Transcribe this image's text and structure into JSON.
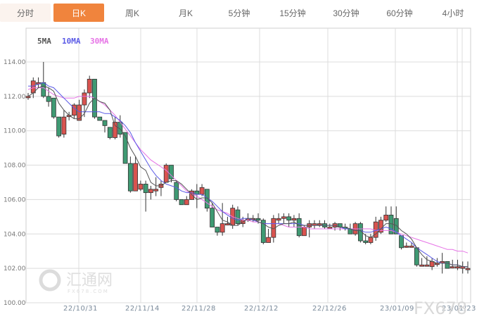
{
  "tabs": [
    {
      "label": "分时",
      "state": "first"
    },
    {
      "label": "日K",
      "state": "active"
    },
    {
      "label": "周K",
      "state": ""
    },
    {
      "label": "月K",
      "state": ""
    },
    {
      "label": "5分钟",
      "state": ""
    },
    {
      "label": "15分钟",
      "state": ""
    },
    {
      "label": "30分钟",
      "state": ""
    },
    {
      "label": "60分钟",
      "state": ""
    },
    {
      "label": "4小时",
      "state": ""
    }
  ],
  "watermark": {
    "logo_text": "汇通网",
    "logo_sub": "FX678.COM",
    "corner_text": "FX678"
  },
  "colors": {
    "up": "#d9534f",
    "down": "#3f9a73",
    "ma5": "#555555",
    "ma10": "#5a5ae6",
    "ma30": "#e673e6",
    "grid": "#dcdcdc",
    "active_tab": "#f0843d"
  },
  "chart_data": {
    "type": "candlestick",
    "title": "",
    "legend": [
      "5MA",
      "10MA",
      "30MA"
    ],
    "xlabel": "",
    "ylabel": "",
    "ylim": [
      100,
      115.6
    ],
    "yticks": [
      "114.00",
      "112.00",
      "110.00",
      "108.00",
      "106.00",
      "104.00",
      "102.00",
      "100.00"
    ],
    "xticks": [
      "22/10/31",
      "22/11/14",
      "22/11/28",
      "22/12/12",
      "22/12/26",
      "23/01/09",
      "23/01/23"
    ],
    "grid": true,
    "candles": [
      [
        112.0,
        112.0,
        112.2,
        111.8
      ],
      [
        112.2,
        112.9,
        113.1,
        111.9
      ],
      [
        112.8,
        112.8,
        113.1,
        112.5
      ],
      [
        112.8,
        112.0,
        114.0,
        111.9
      ],
      [
        112.0,
        111.7,
        112.5,
        111.4
      ],
      [
        111.9,
        110.8,
        111.9,
        110.7
      ],
      [
        110.8,
        109.7,
        110.8,
        109.6
      ],
      [
        109.8,
        110.8,
        111.2,
        109.6
      ],
      [
        110.9,
        110.9,
        111.1,
        110.6
      ],
      [
        110.9,
        111.5,
        111.6,
        110.7
      ],
      [
        110.6,
        111.5,
        111.8,
        110.6
      ],
      [
        111.5,
        112.2,
        112.4,
        110.8
      ],
      [
        112.2,
        113.0,
        113.2,
        111.9
      ],
      [
        113.0,
        110.8,
        113.0,
        110.7
      ],
      [
        110.8,
        110.6,
        110.8,
        110.6
      ],
      [
        110.6,
        110.3,
        110.6,
        109.9
      ],
      [
        110.2,
        109.6,
        110.2,
        109.5
      ],
      [
        109.6,
        110.5,
        110.8,
        109.5
      ],
      [
        110.5,
        109.8,
        110.9,
        109.6
      ],
      [
        109.9,
        108.1,
        109.9,
        108.1
      ],
      [
        108.1,
        106.5,
        108.5,
        106.4
      ],
      [
        106.5,
        108.1,
        108.5,
        106.5
      ],
      [
        106.6,
        106.9,
        107.1,
        106.5
      ],
      [
        106.9,
        106.4,
        107.1,
        105.3
      ],
      [
        106.4,
        106.6,
        106.8,
        106.0
      ],
      [
        106.5,
        106.6,
        107.3,
        106.2
      ],
      [
        106.7,
        106.9,
        107.1,
        106.2
      ],
      [
        107.0,
        108.0,
        108.1,
        107.0
      ],
      [
        108.0,
        107.2,
        108.0,
        107.0
      ],
      [
        107.0,
        106.0,
        107.1,
        105.9
      ],
      [
        106.0,
        105.7,
        106.0,
        105.7
      ],
      [
        105.7,
        106.0,
        106.2,
        105.7
      ],
      [
        106.0,
        106.5,
        106.6,
        106.0
      ],
      [
        106.5,
        106.3,
        106.9,
        105.5
      ],
      [
        106.3,
        106.7,
        106.9,
        106.2
      ],
      [
        106.6,
        105.5,
        106.6,
        105.3
      ],
      [
        105.5,
        104.4,
        105.8,
        104.4
      ],
      [
        104.4,
        104.1,
        104.4,
        103.9
      ],
      [
        104.1,
        104.6,
        105.8,
        103.9
      ],
      [
        104.6,
        104.6,
        105.0,
        104.5
      ],
      [
        104.5,
        105.5,
        105.7,
        104.3
      ],
      [
        105.4,
        104.6,
        105.6,
        104.5
      ],
      [
        104.6,
        104.8,
        105.0,
        104.4
      ],
      [
        104.8,
        104.9,
        105.2,
        104.7
      ],
      [
        104.9,
        104.9,
        105.1,
        104.7
      ],
      [
        104.9,
        104.8,
        105.2,
        104.6
      ],
      [
        104.8,
        103.5,
        104.9,
        103.4
      ],
      [
        103.5,
        103.8,
        104.3,
        103.5
      ],
      [
        103.8,
        104.9,
        105.1,
        103.5
      ],
      [
        104.8,
        104.9,
        105.2,
        104.6
      ],
      [
        104.9,
        105.0,
        105.2,
        104.6
      ],
      [
        105.0,
        104.8,
        105.2,
        104.4
      ],
      [
        104.8,
        104.9,
        105.1,
        104.4
      ],
      [
        104.9,
        103.9,
        105.2,
        103.8
      ],
      [
        103.9,
        104.4,
        104.5,
        103.9
      ],
      [
        104.4,
        104.6,
        104.8,
        103.8
      ],
      [
        104.5,
        104.6,
        104.8,
        104.3
      ],
      [
        104.6,
        104.6,
        104.8,
        104.4
      ],
      [
        104.6,
        104.4,
        104.8,
        104.3
      ],
      [
        104.4,
        104.4,
        104.6,
        104.3
      ],
      [
        104.4,
        104.6,
        104.7,
        104.2
      ],
      [
        104.6,
        104.4,
        104.6,
        104.2
      ],
      [
        104.4,
        104.3,
        104.6,
        104.2
      ],
      [
        104.3,
        104.0,
        104.6,
        104.0
      ],
      [
        104.0,
        104.6,
        104.7,
        103.9
      ],
      [
        104.6,
        103.6,
        104.7,
        103.5
      ],
      [
        103.6,
        103.5,
        104.0,
        103.4
      ],
      [
        103.5,
        103.8,
        104.0,
        103.4
      ],
      [
        103.8,
        104.7,
        105.0,
        103.6
      ],
      [
        104.1,
        104.8,
        105.0,
        104.0
      ],
      [
        104.8,
        105.1,
        105.6,
        104.7
      ],
      [
        105.1,
        104.0,
        105.6,
        104.0
      ],
      [
        104.9,
        104.0,
        105.6,
        104.0
      ],
      [
        103.9,
        103.2,
        103.9,
        103.1
      ],
      [
        103.3,
        103.3,
        103.5,
        103.2
      ],
      [
        103.3,
        103.3,
        103.5,
        103.3
      ],
      [
        103.2,
        102.2,
        103.2,
        102.1
      ],
      [
        102.2,
        102.2,
        102.6,
        102.2
      ],
      [
        102.2,
        102.2,
        102.7,
        102.2
      ],
      [
        102.1,
        102.4,
        102.6,
        101.9
      ],
      [
        102.3,
        102.3,
        102.6,
        102.1
      ],
      [
        102.4,
        102.4,
        102.9,
        101.7
      ],
      [
        102.4,
        102.0,
        102.4,
        102.0
      ],
      [
        102.1,
        102.1,
        102.5,
        102.0
      ],
      [
        102.1,
        102.1,
        102.5,
        101.9
      ],
      [
        102.0,
        102.1,
        102.4,
        101.7
      ],
      [
        102.0,
        102.0,
        102.4,
        101.7
      ]
    ],
    "ma5": [
      112.0,
      112.2,
      112.5,
      112.6,
      112.5,
      112.3,
      111.6,
      111.2,
      110.9,
      110.7,
      110.7,
      111.0,
      111.6,
      111.9,
      111.7,
      111.6,
      111.2,
      110.3,
      110.1,
      109.7,
      109.0,
      108.5,
      107.9,
      107.7,
      107.0,
      106.8,
      106.8,
      107.0,
      107.1,
      107.1,
      106.9,
      106.6,
      106.3,
      106.0,
      106.1,
      106.1,
      105.8,
      105.3,
      104.8,
      104.7,
      104.5,
      104.5,
      104.7,
      104.9,
      104.9,
      104.7,
      104.6,
      104.4,
      104.3,
      104.5,
      104.6,
      104.6,
      104.7,
      104.5,
      104.5,
      104.5,
      104.5,
      104.5,
      104.5,
      104.5,
      104.5,
      104.4,
      104.4,
      104.3,
      104.2,
      104.2,
      103.9,
      103.8,
      104.0,
      104.3,
      104.6,
      104.6,
      104.5,
      104.2,
      104.0,
      103.7,
      103.2,
      102.8,
      102.5,
      102.4,
      102.3,
      102.3,
      102.3,
      102.2,
      102.2,
      102.1,
      102.1
    ],
    "ma10": [
      112.6,
      112.6,
      112.7,
      112.8,
      112.6,
      112.5,
      112.2,
      111.9,
      111.6,
      111.3,
      111.1,
      111.1,
      111.1,
      111.1,
      111.1,
      111.0,
      111.0,
      110.8,
      110.6,
      110.3,
      109.9,
      109.3,
      108.8,
      108.3,
      107.8,
      107.4,
      107.1,
      106.9,
      106.8,
      106.7,
      106.5,
      106.4,
      106.4,
      106.3,
      106.3,
      106.1,
      105.9,
      105.6,
      105.3,
      105.1,
      104.9,
      104.8,
      104.9,
      104.9,
      104.8,
      104.7,
      104.6,
      104.6,
      104.6,
      104.6,
      104.6,
      104.6,
      104.6,
      104.6,
      104.5,
      104.5,
      104.5,
      104.5,
      104.5,
      104.5,
      104.5,
      104.4,
      104.3,
      104.3,
      104.2,
      104.2,
      104.1,
      104.1,
      104.2,
      104.3,
      104.4,
      104.3,
      104.1,
      103.9,
      103.7,
      103.5,
      103.2,
      103.0,
      102.8,
      102.6,
      102.4,
      102.3,
      102.3,
      102.2,
      102.2,
      102.1,
      102.1
    ],
    "ma30": [
      112.4,
      112.5,
      112.5,
      112.5,
      112.3,
      112.1,
      112.0,
      111.9,
      111.9,
      111.9,
      112.0,
      112.0,
      112.0,
      111.9,
      111.7,
      111.5,
      111.2,
      110.9,
      110.5,
      110.1,
      109.7,
      109.3,
      108.9,
      108.6,
      108.3,
      108.1,
      107.9,
      107.7,
      107.4,
      107.1,
      106.8,
      106.5,
      106.3,
      106.2,
      106.0,
      105.8,
      105.6,
      105.4,
      105.3,
      105.2,
      105.0,
      104.9,
      104.8,
      104.8,
      104.7,
      104.7,
      104.6,
      104.6,
      104.6,
      104.6,
      104.5,
      104.4,
      104.4,
      104.4,
      104.4,
      104.3,
      104.3,
      104.3,
      104.3,
      104.3,
      104.3,
      104.3,
      104.3,
      104.3,
      104.3,
      104.3,
      104.3,
      104.3,
      104.2,
      104.2,
      104.2,
      104.2,
      104.1,
      104.0,
      103.9,
      103.8,
      103.7,
      103.6,
      103.5,
      103.4,
      103.3,
      103.2,
      103.1,
      103.1,
      103.0,
      103.0,
      102.9
    ]
  }
}
